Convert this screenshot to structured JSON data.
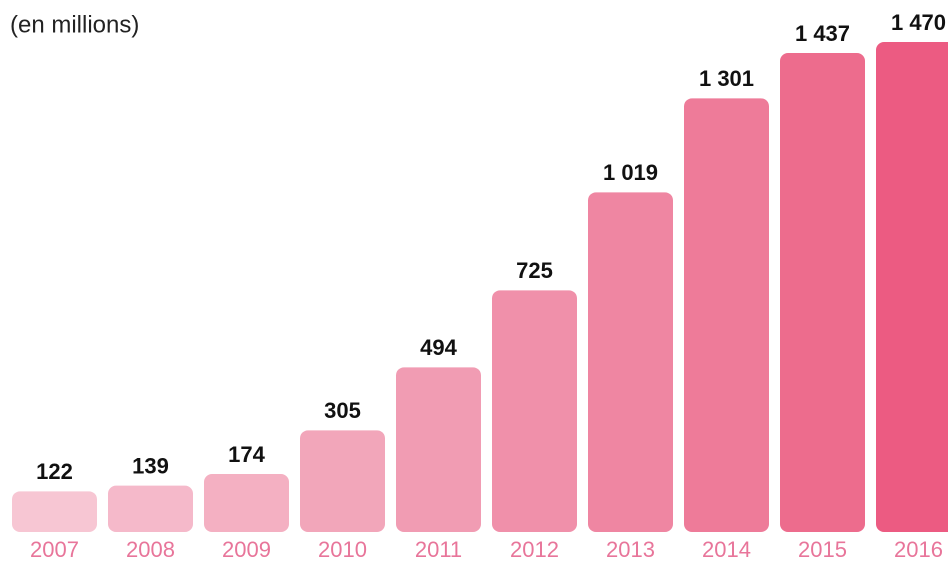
{
  "chart_data": {
    "type": "bar",
    "subtitle": "(en millions)",
    "categories": [
      "2007",
      "2008",
      "2009",
      "2010",
      "2011",
      "2012",
      "2013",
      "2014",
      "2015",
      "2016"
    ],
    "values": [
      122,
      139,
      174,
      305,
      494,
      725,
      1019,
      1301,
      1437,
      1470
    ],
    "value_labels": [
      "122",
      "139",
      "174",
      "305",
      "494",
      "725",
      "1 019",
      "1 301",
      "1 437",
      "1 470"
    ],
    "colors": [
      "#f7c6d3",
      "#f5b9ca",
      "#f4b0c2",
      "#f2a6ba",
      "#f19cb3",
      "#f090aa",
      "#ef86a2",
      "#ee7b99",
      "#ed6c8d",
      "#ec5b82"
    ],
    "ylim": [
      0,
      1470
    ]
  }
}
